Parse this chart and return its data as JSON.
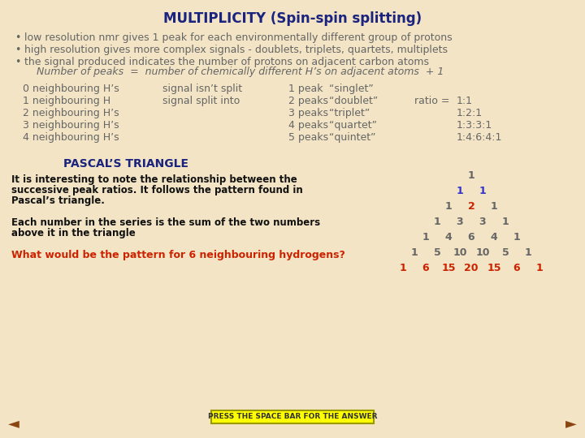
{
  "title": "MULTIPLICITY (Spin-spin splitting)",
  "title_color": "#1a237e",
  "bg_color": "#f2e4c4",
  "bullets": [
    "low resolution nmr gives 1 peak for each environmentally different group of protons",
    "high resolution gives more complex signals - doublets, triplets, quartets, multiplets",
    "the signal produced indicates the number of protons on adjacent carbon atoms"
  ],
  "number_of_peaks_line": "Number of peaks  =  number of chemically different H’s on adjacent atoms  + 1",
  "left_col": [
    "0 neighbouring H’s",
    "1 neighbouring H",
    "2 neighbouring H’s",
    "3 neighbouring H’s",
    "4 neighbouring H’s"
  ],
  "mid_col1": [
    "signal isn’t split",
    "signal split into",
    "",
    "",
    ""
  ],
  "mid_col2": [
    "1 peak",
    "2 peaks",
    "3 peaks",
    "4 peaks",
    "5 peaks"
  ],
  "mid_col3": [
    "“singlet”",
    "“doublet”",
    "“triplet”",
    "“quartet”",
    "“quintet”"
  ],
  "ratio_label": "ratio =",
  "ratios": [
    "",
    "1:1",
    "1:2:1",
    "1:3:3:1",
    "1:4:6:4:1"
  ],
  "pascal_title": "PASCAL’S TRIANGLE",
  "pascal_title_color": "#1a237e",
  "pascal_text1_lines": [
    "It is interesting to note the relationship between the",
    "successive peak ratios. It follows the pattern found in",
    "Pascal’s triangle."
  ],
  "pascal_text2_lines": [
    "Each number in the series is the sum of the two numbers",
    "above it in the triangle"
  ],
  "pascal_question": "What would be the pattern for 6 neighbouring hydrogens?",
  "pascal_question_color": "#cc2200",
  "pascal_rows": [
    {
      "values": [
        1
      ],
      "color": "#666666"
    },
    {
      "values": [
        1,
        1
      ],
      "color": "#3333cc"
    },
    {
      "values": [
        1,
        2,
        1
      ],
      "color": "#666666"
    },
    {
      "values": [
        1,
        3,
        3,
        1
      ],
      "color": "#666666"
    },
    {
      "values": [
        1,
        4,
        6,
        4,
        1
      ],
      "color": "#666666"
    },
    {
      "values": [
        1,
        5,
        10,
        10,
        5,
        1
      ],
      "color": "#666666"
    },
    {
      "values": [
        1,
        6,
        15,
        20,
        15,
        6,
        1
      ],
      "color": "#cc2200"
    }
  ],
  "pascal_2_color": "#cc2200",
  "button_text": "PRESS THE SPACE BAR FOR THE ANSWER",
  "button_bg": "#ffff00",
  "button_border": "#999900",
  "arrow_color": "#8B4513",
  "text_color": "#666666"
}
